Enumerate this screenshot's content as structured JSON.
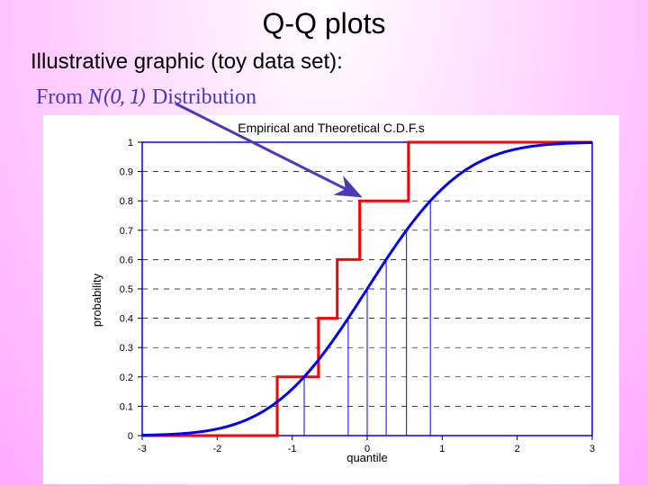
{
  "page": {
    "title": "Q-Q plots",
    "subtitle": "Illustrative graphic (toy data set):",
    "distribution_prefix": "From ",
    "distribution_math": "N(0, 1)",
    "distribution_suffix": " Distribution",
    "background_gradient_center": "#ffffff",
    "background_gradient_mid": "#ffddff",
    "background_gradient_outer": "#ffaaff"
  },
  "chart": {
    "type": "line",
    "title": "Empirical and Theoretical C.D.F.s",
    "xlabel": "quantile",
    "ylabel": "probability",
    "title_fontsize": 14,
    "label_fontsize": 13,
    "xlim": [
      -3,
      3
    ],
    "ylim": [
      0,
      1
    ],
    "xtick_step": 1,
    "ytick_step": 0.1,
    "xticks": [
      -3,
      -2,
      -1,
      0,
      1,
      2,
      3
    ],
    "yticks": [
      0,
      0.1,
      0.2,
      0.3,
      0.4,
      0.5,
      0.6,
      0.7,
      0.8,
      0.9,
      1
    ],
    "grid_on": true,
    "grid_style": "dashed",
    "grid_color": "#000000",
    "grid_width": 0.7,
    "box_color": "#0000ff",
    "box_width": 1.5,
    "background_color": "#ffffff",
    "sigmoid": {
      "color": "#0000ff",
      "width": 3,
      "points_x": [
        -3,
        -2.5,
        -2,
        -1.5,
        -1,
        -0.5,
        0,
        0.5,
        1,
        1.5,
        2,
        2.5,
        3
      ],
      "points_y": [
        0.0013,
        0.0062,
        0.0228,
        0.0668,
        0.1587,
        0.3085,
        0.5,
        0.6915,
        0.8413,
        0.9332,
        0.9772,
        0.9938,
        0.9987
      ]
    },
    "ecdf": {
      "color": "#ff0000",
      "width": 3,
      "steps_x": [
        -3,
        -1.2,
        -1.2,
        -0.65,
        -0.65,
        -0.4,
        -0.4,
        -0.1,
        -0.1,
        0.55,
        0.55,
        3
      ],
      "steps_y": [
        0,
        0,
        0.2,
        0.2,
        0.4,
        0.4,
        0.6,
        0.6,
        0.8,
        0.8,
        1,
        1
      ]
    },
    "vlines": {
      "color": "#0000ff",
      "width": 1,
      "x": [
        -0.84,
        -0.253,
        0.0,
        0.253,
        0.524,
        0.842
      ],
      "y_top": [
        0.2,
        0.4,
        0.5,
        0.6,
        0.7,
        0.8
      ]
    },
    "arrow": {
      "color": "#4a3ab8",
      "width": 3,
      "start": [
        195,
        115
      ],
      "end": [
        400,
        218
      ]
    }
  }
}
